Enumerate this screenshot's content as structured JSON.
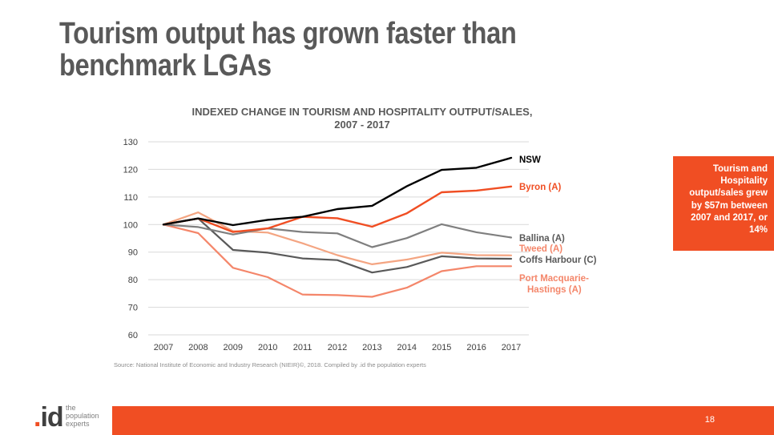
{
  "slide": {
    "title": "Tourism output has grown faster than benchmark LGAs",
    "source": "Source: National Institute of Economic and Industry Research (NIEIR)©, 2018. Compiled by .id the population experts",
    "callout": "Tourism and Hospitality output/sales grew by $57m between 2007 and 2017, or 14%",
    "page_number": "18",
    "logo": {
      "mark": "id",
      "tagline": [
        "the",
        "population",
        "experts"
      ]
    }
  },
  "chart_data": {
    "type": "line",
    "title_lines": [
      "INDEXED CHANGE IN TOURISM AND HOSPITALITY OUTPUT/SALES,",
      "2007 - 2017"
    ],
    "xlabel": "",
    "ylabel": "",
    "categories": [
      "2007",
      "2008",
      "2009",
      "2010",
      "2011",
      "2012",
      "2013",
      "2014",
      "2015",
      "2016",
      "2017"
    ],
    "ylim": [
      60,
      130
    ],
    "yticks": [
      60,
      70,
      80,
      90,
      100,
      110,
      120,
      130
    ],
    "grid": true,
    "series": [
      {
        "name": "NSW",
        "label_lines": [
          "NSW"
        ],
        "color": "#000000",
        "values": [
          100,
          102.2,
          99.8,
          101.7,
          102.8,
          105.6,
          106.8,
          113.9,
          119.8,
          120.6,
          124.2
        ]
      },
      {
        "name": "Byron (A)",
        "label_lines": [
          "Byron (A)"
        ],
        "color": "#f04e23",
        "values": [
          100,
          102.2,
          97.3,
          98.6,
          102.8,
          102.3,
          99.2,
          104.1,
          111.7,
          112.3,
          113.8
        ]
      },
      {
        "name": "Ballina (A)",
        "label_lines": [
          "Ballina (A)"
        ],
        "color": "#7f7f7f",
        "values": [
          100,
          99.1,
          96.4,
          98.6,
          97.3,
          96.8,
          91.8,
          95.1,
          100.1,
          97.2,
          95.3
        ]
      },
      {
        "name": "Tweed (A)",
        "label_lines": [
          "Tweed (A)"
        ],
        "color": "#f4a582",
        "values": [
          100,
          104.4,
          97.6,
          97.1,
          93.2,
          88.9,
          85.6,
          87.3,
          89.8,
          88.9,
          88.8
        ]
      },
      {
        "name": "Coffs Harbour (C)",
        "label_lines": [
          "Coffs Harbour (C)"
        ],
        "color": "#595959",
        "values": [
          100,
          102.2,
          90.8,
          89.8,
          87.7,
          87.1,
          82.6,
          84.6,
          88.5,
          87.7,
          87.6
        ]
      },
      {
        "name": "Port Macquarie-Hastings (A)",
        "label_lines": [
          "Port Macquarie-",
          "Hastings (A)"
        ],
        "color": "#f4866a",
        "values": [
          100,
          96.9,
          84.3,
          80.9,
          74.6,
          74.4,
          73.8,
          77.1,
          83.1,
          84.9,
          84.9
        ]
      }
    ]
  }
}
